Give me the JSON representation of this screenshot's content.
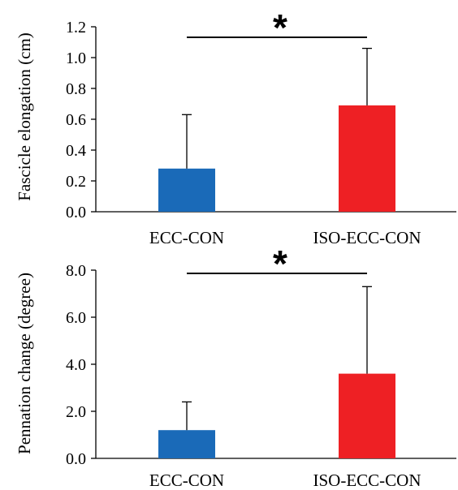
{
  "chart_data": [
    {
      "type": "bar",
      "title": "",
      "xlabel": "",
      "ylabel": "Fascicle elongation (cm)",
      "categories": [
        "ECC-CON",
        "ISO-ECC-CON"
      ],
      "values": [
        0.28,
        0.69
      ],
      "error_upper": [
        0.35,
        0.37
      ],
      "colors": [
        "#1a6ab8",
        "#ee2024"
      ],
      "ylim": [
        0,
        1.2
      ],
      "yticks": [
        "0.0",
        "0.2",
        "0.4",
        "0.6",
        "0.8",
        "1.0",
        "1.2"
      ],
      "significance": {
        "between": [
          "ECC-CON",
          "ISO-ECC-CON"
        ],
        "symbol": "*"
      },
      "grid": false,
      "legend": "none"
    },
    {
      "type": "bar",
      "title": "",
      "xlabel": "",
      "ylabel": "Pennation change (degree)",
      "categories": [
        "ECC-CON",
        "ISO-ECC-CON"
      ],
      "values": [
        1.2,
        3.6
      ],
      "error_upper": [
        1.2,
        3.7
      ],
      "colors": [
        "#1a6ab8",
        "#ee2024"
      ],
      "ylim": [
        0,
        8.0
      ],
      "yticks": [
        "0.0",
        "2.0",
        "4.0",
        "6.0",
        "8.0"
      ],
      "significance": {
        "between": [
          "ECC-CON",
          "ISO-ECC-CON"
        ],
        "symbol": "*"
      },
      "grid": false,
      "legend": "none"
    }
  ]
}
